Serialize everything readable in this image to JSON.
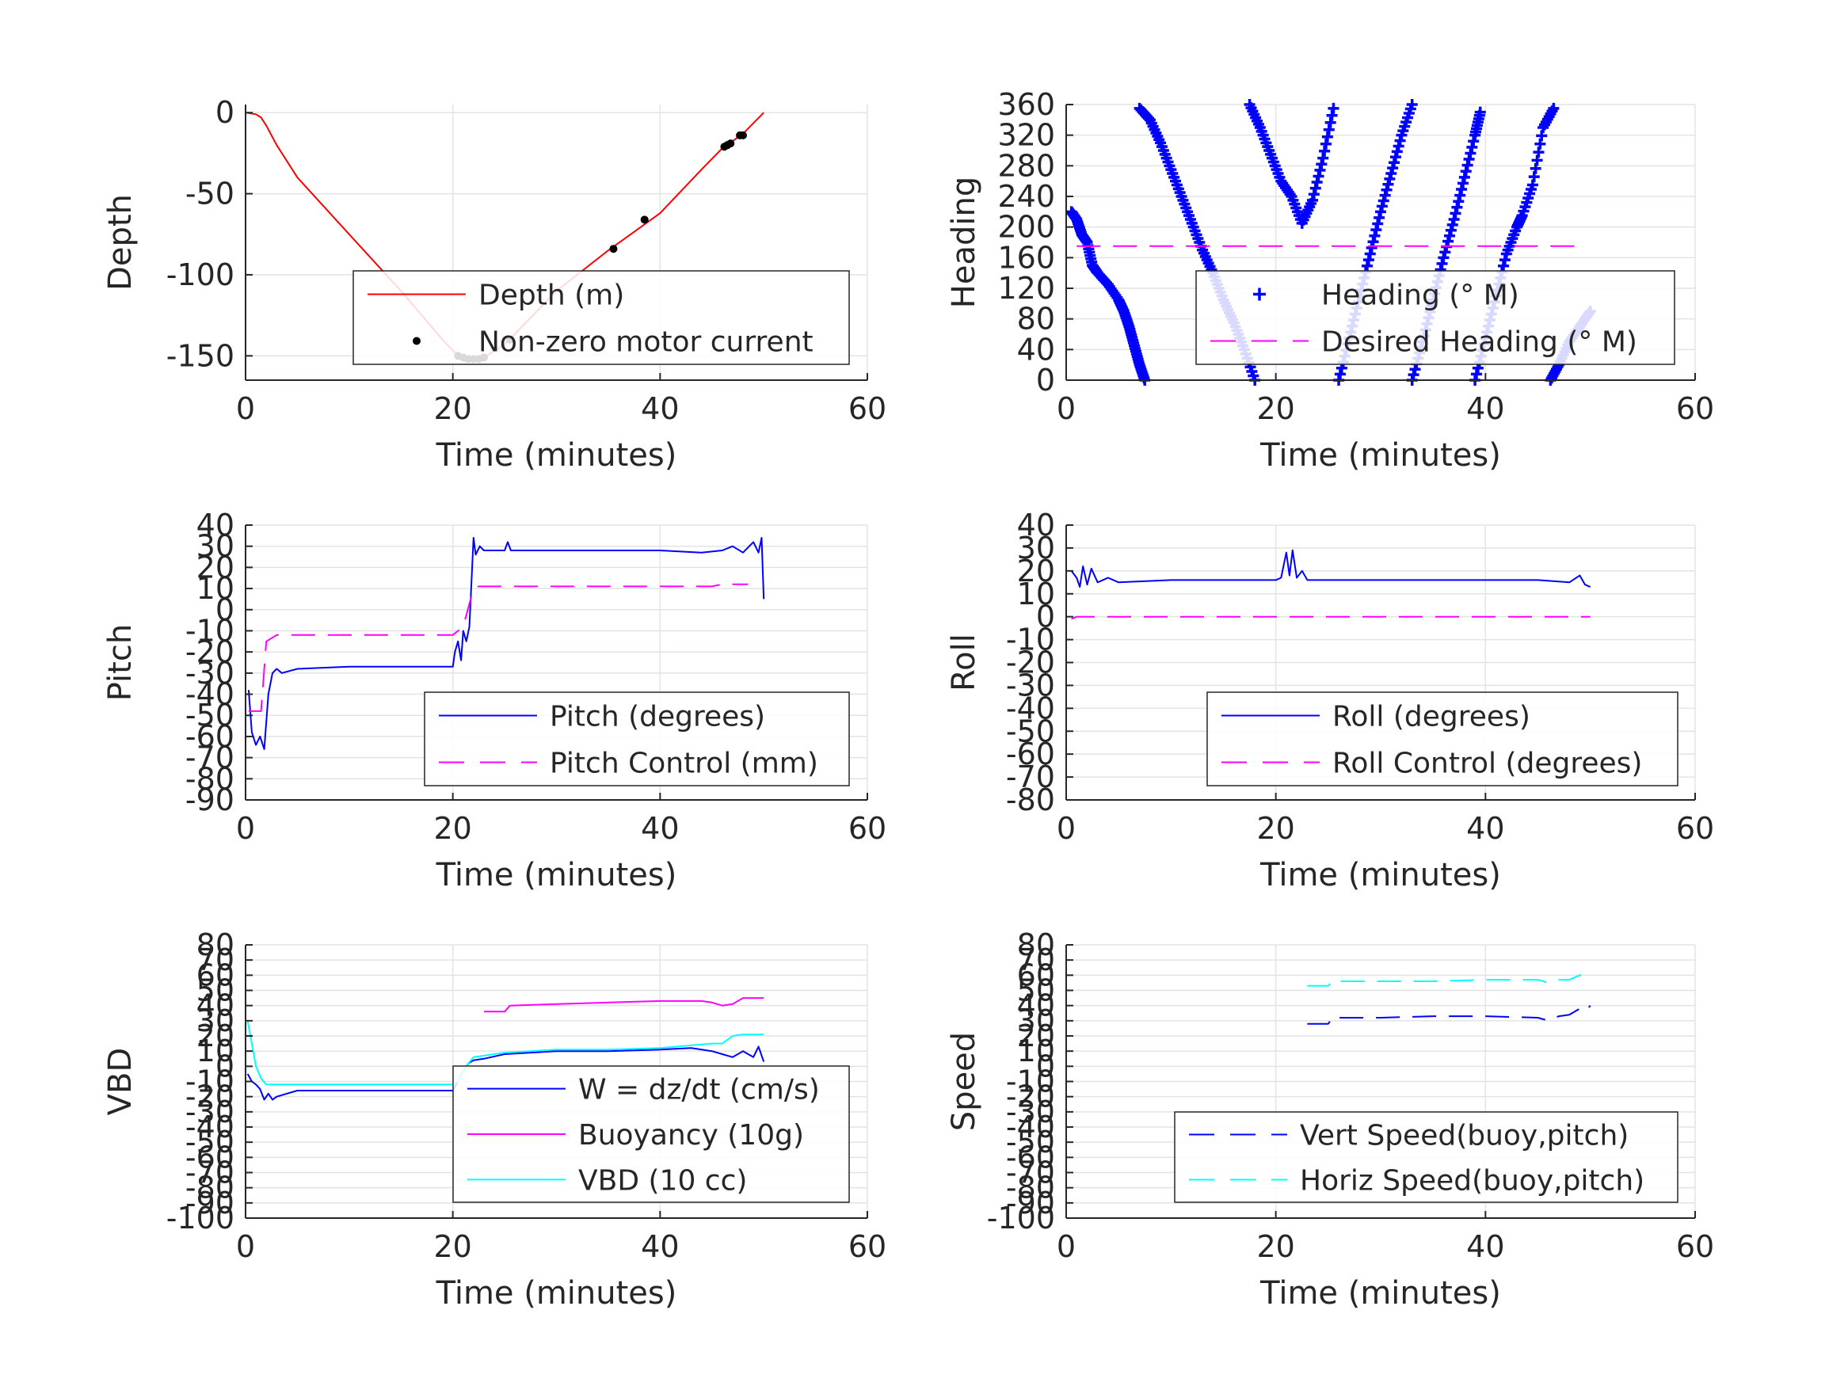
{
  "chart_data": [
    {
      "type": "line",
      "title": "",
      "xlabel": "Time (minutes)",
      "ylabel": "Depth",
      "xlim": [
        0,
        60
      ],
      "ylim": [
        -165,
        5
      ],
      "xticks": [
        0,
        20,
        40,
        60
      ],
      "yticks": [
        0,
        -50,
        -100,
        -150
      ],
      "grid": true,
      "legend_position": "bottom-right",
      "series": [
        {
          "name": "Depth (m)",
          "color": "#ff0000",
          "style": "solid",
          "x": [
            0,
            1,
            1.5,
            2,
            3,
            5,
            10,
            15,
            19,
            20.5,
            21,
            22,
            23,
            25,
            30,
            35,
            40,
            44,
            46,
            48,
            50
          ],
          "y": [
            0,
            -1,
            -3,
            -8,
            -20,
            -40,
            -75,
            -110,
            -140,
            -150,
            -153,
            -153,
            -151,
            -143,
            -110,
            -85,
            -62,
            -35,
            -22,
            -13,
            0
          ]
        },
        {
          "name": "Non-zero motor current",
          "color": "#000000",
          "style": "marker-dot",
          "x": [
            20.5,
            21,
            21.5,
            22,
            22.5,
            23,
            25.5,
            35.5,
            38.5,
            46.2,
            46.5,
            46.8,
            47.7,
            48
          ],
          "y": [
            -150,
            -151,
            -152,
            -152,
            -152,
            -151,
            -140,
            -84,
            -66,
            -21,
            -20,
            -19,
            -14,
            -14
          ]
        }
      ]
    },
    {
      "type": "scatter",
      "title": "",
      "xlabel": "Time (minutes)",
      "ylabel": "Heading",
      "xlim": [
        0,
        60
      ],
      "ylim": [
        0,
        360
      ],
      "xticks": [
        0,
        20,
        40,
        60
      ],
      "yticks": [
        0,
        40,
        80,
        120,
        160,
        200,
        240,
        280,
        320,
        360
      ],
      "grid": true,
      "legend_position": "bottom-right",
      "series": [
        {
          "name": "Heading (° M)",
          "color": "#0000ff",
          "style": "marker-plus",
          "segments": [
            {
              "x": [
                0.5,
                1,
                1.5,
                2,
                2.5,
                3,
                4,
                5,
                5.5,
                6,
                6.5,
                7,
                7.5
              ],
              "y": [
                220,
                210,
                190,
                180,
                150,
                140,
                125,
                105,
                90,
                70,
                45,
                20,
                0
              ]
            },
            {
              "x": [
                7,
                8,
                9,
                10,
                11,
                12,
                13,
                14,
                15,
                16,
                17,
                18
              ],
              "y": [
                355,
                340,
                310,
                275,
                240,
                205,
                170,
                140,
                105,
                75,
                40,
                0
              ]
            },
            {
              "x": [
                17.5,
                18.5,
                19.5,
                20.5,
                21.5,
                22.5,
                23.5,
                24.5,
                25.5
              ],
              "y": [
                360,
                330,
                295,
                260,
                240,
                205,
                235,
                290,
                355
              ]
            },
            {
              "x": [
                26,
                27,
                28,
                29,
                30,
                31,
                32,
                33
              ],
              "y": [
                0,
                55,
                110,
                165,
                220,
                270,
                320,
                360
              ]
            },
            {
              "x": [
                33,
                34,
                35,
                36,
                37,
                38,
                39,
                39.5
              ],
              "y": [
                0,
                50,
                105,
                160,
                210,
                265,
                320,
                350
              ]
            },
            {
              "x": [
                39,
                40,
                41,
                42,
                43,
                43.5,
                44.5,
                45.5,
                46.5
              ],
              "y": [
                0,
                55,
                110,
                165,
                200,
                215,
                255,
                330,
                355
              ]
            },
            {
              "x": [
                46.2,
                47,
                48,
                49,
                50
              ],
              "y": [
                0,
                20,
                50,
                70,
                90
              ]
            }
          ]
        },
        {
          "name": "Desired Heading (° M)",
          "color": "#ff00ff",
          "style": "dashed",
          "x": [
            1,
            49.5
          ],
          "y": [
            175,
            175
          ]
        }
      ]
    },
    {
      "type": "line",
      "title": "",
      "xlabel": "Time (minutes)",
      "ylabel": "Pitch",
      "xlim": [
        0,
        60
      ],
      "ylim": [
        -90,
        40
      ],
      "xticks": [
        0,
        20,
        40,
        60
      ],
      "yticks": [
        40,
        30,
        20,
        10,
        0,
        -10,
        -20,
        -30,
        -40,
        -50,
        -60,
        -70,
        -80,
        -90
      ],
      "grid": true,
      "legend_position": "bottom-right",
      "series": [
        {
          "name": "Pitch (degrees)",
          "color": "#0000ff",
          "style": "solid",
          "x": [
            0.3,
            0.6,
            1,
            1.4,
            1.8,
            2.2,
            2.6,
            3,
            3.5,
            5,
            10,
            15,
            20,
            20.2,
            20.5,
            20.8,
            21,
            21.3,
            21.6,
            22,
            22.2,
            22.6,
            23,
            25,
            25.3,
            25.6,
            30,
            35,
            40,
            44,
            46,
            47,
            48,
            49,
            49.5,
            49.8,
            50
          ],
          "y": [
            -38,
            -58,
            -64,
            -60,
            -66,
            -40,
            -30,
            -28,
            -30,
            -28,
            -27,
            -27,
            -27,
            -20,
            -15,
            -24,
            -10,
            -15,
            -8,
            34,
            26,
            30,
            28,
            28,
            32,
            28,
            28,
            28,
            28,
            27,
            28,
            30,
            27,
            32,
            27,
            34,
            5
          ]
        },
        {
          "name": "Pitch Control (mm)",
          "color": "#ff00ff",
          "style": "dashed",
          "x": [
            0.3,
            1.5,
            2,
            3,
            20,
            21,
            22,
            22.5,
            45,
            46,
            48.5
          ],
          "y": [
            -48,
            -48,
            -15,
            -12,
            -12,
            -8,
            10,
            11,
            11,
            12,
            12
          ]
        }
      ]
    },
    {
      "type": "line",
      "title": "",
      "xlabel": "Time (minutes)",
      "ylabel": "Roll",
      "xlim": [
        0,
        60
      ],
      "ylim": [
        -80,
        40
      ],
      "xticks": [
        0,
        20,
        40,
        60
      ],
      "yticks": [
        40,
        30,
        20,
        10,
        0,
        -10,
        -20,
        -30,
        -40,
        -50,
        -60,
        -70,
        -80
      ],
      "grid": true,
      "legend_position": "bottom-right",
      "series": [
        {
          "name": "Roll (degrees)",
          "color": "#0000ff",
          "style": "solid",
          "x": [
            0.5,
            1,
            1.3,
            1.6,
            2,
            2.4,
            3,
            4,
            5,
            10,
            15,
            20,
            20.5,
            21,
            21.3,
            21.6,
            22,
            22.5,
            23,
            25,
            30,
            35,
            40,
            45,
            48,
            49,
            49.5,
            50
          ],
          "y": [
            20,
            17,
            13,
            22,
            14,
            21,
            15,
            17,
            15,
            16,
            16,
            16,
            17,
            28,
            18,
            29,
            17,
            20,
            16,
            16,
            16,
            16,
            16,
            16,
            15,
            18,
            14,
            13
          ]
        },
        {
          "name": "Roll Control (degrees)",
          "color": "#ff00ff",
          "style": "dashed",
          "x": [
            0.5,
            1,
            50
          ],
          "y": [
            -1,
            0,
            0
          ]
        }
      ]
    },
    {
      "type": "line",
      "title": "",
      "xlabel": "Time (minutes)",
      "ylabel": "VBD",
      "xlim": [
        0,
        60
      ],
      "ylim": [
        -100,
        80
      ],
      "xticks": [
        0,
        20,
        40,
        60
      ],
      "yticks": [
        80,
        70,
        60,
        50,
        40,
        30,
        20,
        10,
        0,
        -10,
        -20,
        -30,
        -40,
        -50,
        -60,
        -70,
        -80,
        -90,
        -100
      ],
      "grid": true,
      "legend_position": "bottom-right",
      "series": [
        {
          "name": "W = dz/dt (cm/s)",
          "color": "#0000ff",
          "style": "solid",
          "x": [
            0.2,
            0.6,
            1,
            1.4,
            1.8,
            2.2,
            2.6,
            3,
            4,
            5,
            10,
            15,
            20,
            20.5,
            21,
            21.5,
            22,
            23,
            25,
            30,
            35,
            40,
            43,
            45,
            46,
            47,
            48,
            49,
            49.5,
            50
          ],
          "y": [
            -5,
            -10,
            -12,
            -15,
            -22,
            -18,
            -22,
            -20,
            -18,
            -16,
            -16,
            -16,
            -16,
            -10,
            -3,
            2,
            4,
            5,
            8,
            10,
            10,
            11,
            12,
            10,
            8,
            6,
            10,
            6,
            13,
            3
          ]
        },
        {
          "name": "Buoyancy (10g)",
          "color": "#ff00ff",
          "style": "solid",
          "x": [
            23,
            25,
            25.5,
            30,
            35,
            40,
            44,
            45,
            46,
            47,
            48,
            50
          ],
          "y": [
            36,
            36,
            40,
            41,
            42,
            43,
            43,
            42,
            40,
            41,
            45,
            45
          ]
        },
        {
          "name": "VBD (10 cc)",
          "color": "#00ffff",
          "style": "solid",
          "x": [
            0.2,
            0.6,
            1,
            1.5,
            2,
            3,
            5,
            10,
            15,
            20,
            20.5,
            21,
            21.5,
            22,
            25,
            30,
            35,
            40,
            45,
            46,
            47,
            48,
            50
          ],
          "y": [
            30,
            15,
            0,
            -8,
            -12,
            -12,
            -12,
            -12,
            -12,
            -12,
            -10,
            -3,
            2,
            6,
            9,
            11,
            11,
            12,
            15,
            15,
            20,
            21,
            21
          ]
        }
      ]
    },
    {
      "type": "line",
      "title": "",
      "xlabel": "Time (minutes)",
      "ylabel": "Speed",
      "xlim": [
        0,
        60
      ],
      "ylim": [
        -100,
        80
      ],
      "xticks": [
        0,
        20,
        40,
        60
      ],
      "yticks": [
        80,
        70,
        60,
        50,
        40,
        30,
        20,
        10,
        0,
        -10,
        -20,
        -30,
        -40,
        -50,
        -60,
        -70,
        -80,
        -90,
        -100
      ],
      "grid": true,
      "legend_position": "bottom-right",
      "series": [
        {
          "name": "Vert Speed(buoy,pitch)",
          "color": "#0000ff",
          "style": "dashed",
          "x": [
            23,
            25,
            25.5,
            26,
            30,
            35,
            40,
            45,
            46,
            47,
            48,
            49,
            49.5,
            50
          ],
          "y": [
            28,
            28,
            33,
            32,
            32,
            33,
            33,
            32,
            30,
            33,
            34,
            38,
            36,
            40
          ]
        },
        {
          "name": "Horiz Speed(buoy,pitch)",
          "color": "#00ffff",
          "style": "dashed",
          "x": [
            23,
            25,
            25.5,
            26,
            30,
            35,
            40,
            45,
            46,
            47,
            48,
            49,
            50
          ],
          "y": [
            53,
            53,
            57,
            56,
            56,
            56,
            57,
            57,
            55,
            57,
            57,
            60,
            61
          ]
        }
      ]
    }
  ]
}
